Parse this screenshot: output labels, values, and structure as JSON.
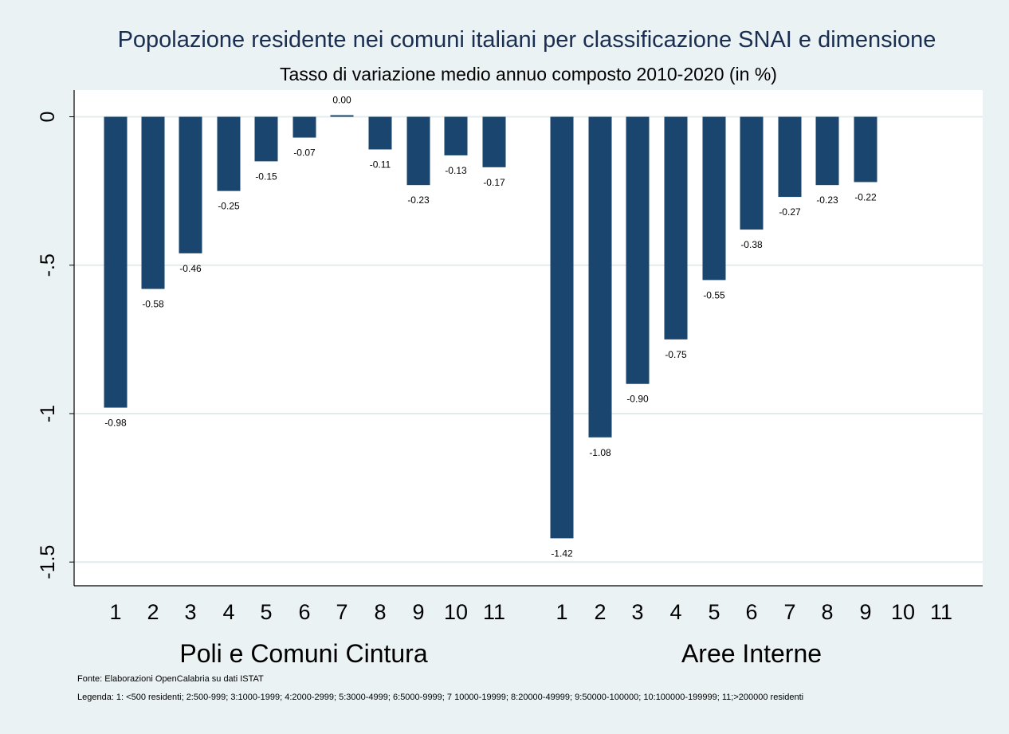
{
  "chart_data": {
    "type": "bar",
    "title": "Popolazione residente nei comuni italiani per classificazione SNAI e dimensione",
    "subtitle": "Tasso di variazione medio annuo composto 2010-2020 (in %)",
    "xlabel": "",
    "ylabel": "",
    "ylim": [
      -1.58,
      0.09
    ],
    "yticks": [
      {
        "value": 0,
        "label": "0"
      },
      {
        "value": -0.5,
        "label": "-.5"
      },
      {
        "value": -1,
        "label": "-1"
      },
      {
        "value": -1.5,
        "label": "-1.5"
      }
    ],
    "grid": true,
    "bar_color": "#1a456e",
    "groups": [
      {
        "name": "Poli e Comuni Cintura",
        "categories": [
          "1",
          "2",
          "3",
          "4",
          "5",
          "6",
          "7",
          "8",
          "9",
          "10",
          "11"
        ],
        "values": [
          -0.98,
          -0.58,
          -0.46,
          -0.25,
          -0.15,
          -0.07,
          0.0,
          -0.11,
          -0.23,
          -0.13,
          -0.17
        ],
        "labels": [
          "-0.98",
          "-0.58",
          "-0.46",
          "-0.25",
          "-0.15",
          "-0.07",
          "0.00",
          "-0.11",
          "-0.23",
          "-0.13",
          "-0.17"
        ]
      },
      {
        "name": "Aree Interne",
        "categories": [
          "1",
          "2",
          "3",
          "4",
          "5",
          "6",
          "7",
          "8",
          "9",
          "10",
          "11"
        ],
        "values": [
          -1.42,
          -1.08,
          -0.9,
          -0.75,
          -0.55,
          -0.38,
          -0.27,
          -0.23,
          -0.22,
          null,
          null
        ],
        "labels": [
          "-1.42",
          "-1.08",
          "-0.90",
          "-0.75",
          "-0.55",
          "-0.38",
          "-0.27",
          "-0.23",
          "-0.22",
          "",
          ""
        ]
      }
    ]
  },
  "notes": {
    "source": "Fonte: Elaborazioni OpenCalabria su dati ISTAT",
    "legend": "Legenda: 1: <500 residenti; 2:500-999; 3:1000-1999; 4:2000-2999; 5:3000-4999; 6:5000-9999; 7 10000-19999; 8:20000-49999; 9:50000-100000; 10:100000-199999;  11;>200000 residenti"
  }
}
